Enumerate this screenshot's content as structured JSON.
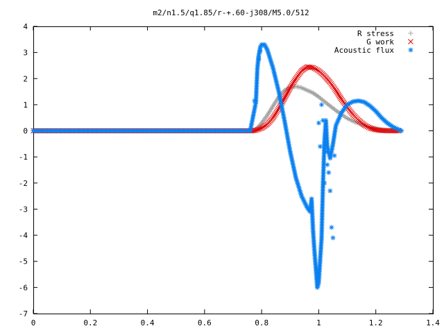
{
  "chart_data": {
    "type": "scatter",
    "title": "m2/n1.5/q1.85/r-+.60-j308/M5.0/512",
    "xlabel": "",
    "ylabel": "",
    "xlim": [
      0,
      1.4
    ],
    "ylim": [
      -7,
      4
    ],
    "x_ticks": [
      "0",
      "0.2",
      "0.4",
      "0.6",
      "0.8",
      "1",
      "1.2",
      "1.4"
    ],
    "y_ticks": [
      "-7",
      "-6",
      "-5",
      "-4",
      "-3",
      "-2",
      "-1",
      "0",
      "1",
      "2",
      "3",
      "4"
    ],
    "grid": false,
    "legend_position": "top-right",
    "series": [
      {
        "name": "R stress",
        "marker": "plus",
        "color": "#a0a0a0",
        "points": [
          [
            0,
            0
          ],
          [
            0.1,
            0
          ],
          [
            0.2,
            0
          ],
          [
            0.3,
            0
          ],
          [
            0.4,
            0
          ],
          [
            0.5,
            0
          ],
          [
            0.6,
            0
          ],
          [
            0.7,
            0
          ],
          [
            0.77,
            0
          ],
          [
            0.78,
            0.05
          ],
          [
            0.8,
            0.3
          ],
          [
            0.82,
            0.6
          ],
          [
            0.84,
            0.95
          ],
          [
            0.86,
            1.3
          ],
          [
            0.88,
            1.55
          ],
          [
            0.9,
            1.68
          ],
          [
            0.92,
            1.7
          ],
          [
            0.94,
            1.65
          ],
          [
            0.96,
            1.55
          ],
          [
            0.98,
            1.45
          ],
          [
            1.0,
            1.3
          ],
          [
            1.02,
            1.12
          ],
          [
            1.04,
            0.95
          ],
          [
            1.06,
            0.78
          ],
          [
            1.08,
            0.62
          ],
          [
            1.1,
            0.48
          ],
          [
            1.12,
            0.37
          ],
          [
            1.14,
            0.28
          ],
          [
            1.16,
            0.2
          ],
          [
            1.18,
            0.14
          ],
          [
            1.2,
            0.08
          ],
          [
            1.22,
            0.04
          ],
          [
            1.24,
            0.02
          ],
          [
            1.26,
            0.01
          ],
          [
            1.28,
            0
          ]
        ]
      },
      {
        "name": "G work",
        "marker": "cross",
        "color": "#e00000",
        "points": [
          [
            0,
            0
          ],
          [
            0.1,
            0
          ],
          [
            0.2,
            0
          ],
          [
            0.3,
            0
          ],
          [
            0.4,
            0
          ],
          [
            0.5,
            0
          ],
          [
            0.6,
            0
          ],
          [
            0.7,
            0
          ],
          [
            0.77,
            0
          ],
          [
            0.78,
            0.02
          ],
          [
            0.8,
            0.1
          ],
          [
            0.82,
            0.25
          ],
          [
            0.84,
            0.5
          ],
          [
            0.86,
            0.85
          ],
          [
            0.88,
            1.25
          ],
          [
            0.9,
            1.65
          ],
          [
            0.92,
            2.0
          ],
          [
            0.94,
            2.3
          ],
          [
            0.96,
            2.45
          ],
          [
            0.98,
            2.42
          ],
          [
            1.0,
            2.3
          ],
          [
            1.02,
            2.1
          ],
          [
            1.04,
            1.85
          ],
          [
            1.06,
            1.55
          ],
          [
            1.08,
            1.2
          ],
          [
            1.1,
            0.9
          ],
          [
            1.12,
            0.62
          ],
          [
            1.14,
            0.4
          ],
          [
            1.16,
            0.22
          ],
          [
            1.18,
            0.1
          ],
          [
            1.2,
            0.04
          ],
          [
            1.22,
            0.01
          ],
          [
            1.24,
            0
          ],
          [
            1.26,
            0
          ],
          [
            1.28,
            0
          ]
        ]
      },
      {
        "name": "Acoustic flux",
        "marker": "star",
        "color": "#0a80f0",
        "points": [
          [
            0,
            0
          ],
          [
            0.1,
            0
          ],
          [
            0.2,
            0
          ],
          [
            0.3,
            0
          ],
          [
            0.4,
            0
          ],
          [
            0.5,
            0
          ],
          [
            0.6,
            0
          ],
          [
            0.7,
            0
          ],
          [
            0.76,
            0
          ],
          [
            0.78,
            1.1
          ],
          [
            0.785,
            2.4
          ],
          [
            0.79,
            2.9
          ],
          [
            0.795,
            3.2
          ],
          [
            0.8,
            3.3
          ],
          [
            0.81,
            3.3
          ],
          [
            0.82,
            3.1
          ],
          [
            0.84,
            2.4
          ],
          [
            0.86,
            1.5
          ],
          [
            0.88,
            0.4
          ],
          [
            0.9,
            -0.8
          ],
          [
            0.92,
            -1.8
          ],
          [
            0.94,
            -2.5
          ],
          [
            0.96,
            -2.95
          ],
          [
            0.97,
            -3.1
          ],
          [
            0.975,
            -2.6
          ],
          [
            0.98,
            -3.8
          ],
          [
            0.985,
            -4.6
          ],
          [
            0.99,
            -5.3
          ],
          [
            0.995,
            -6.0
          ],
          [
            1.0,
            -5.8
          ],
          [
            1.01,
            -4.1
          ],
          [
            1.015,
            -2.0
          ],
          [
            1.02,
            -0.4
          ],
          [
            1.025,
            0.4
          ],
          [
            1.03,
            -0.6
          ],
          [
            1.04,
            -1.05
          ],
          [
            1.05,
            -0.5
          ],
          [
            1.06,
            0.2
          ],
          [
            1.08,
            0.7
          ],
          [
            1.1,
            1.0
          ],
          [
            1.12,
            1.12
          ],
          [
            1.14,
            1.15
          ],
          [
            1.16,
            1.1
          ],
          [
            1.18,
            0.95
          ],
          [
            1.2,
            0.75
          ],
          [
            1.22,
            0.5
          ],
          [
            1.24,
            0.3
          ],
          [
            1.26,
            0.15
          ],
          [
            1.28,
            0.05
          ],
          [
            1.29,
            0
          ]
        ]
      },
      {
        "name": "",
        "marker": "star",
        "color": "#0a80f0",
        "points": [
          [
            0.775,
            1.15
          ],
          [
            0.79,
            2.75
          ],
          [
            0.795,
            3.05
          ],
          [
            1.0,
            0.3
          ],
          [
            1.005,
            -0.6
          ],
          [
            1.01,
            1.0
          ],
          [
            1.015,
            0.4
          ],
          [
            1.02,
            -2.0
          ],
          [
            1.025,
            -0.8
          ],
          [
            1.03,
            -1.3
          ],
          [
            1.035,
            -1.6
          ],
          [
            1.04,
            -2.3
          ],
          [
            1.045,
            -3.7
          ],
          [
            1.05,
            -4.1
          ],
          [
            1.055,
            -0.95
          ]
        ]
      }
    ]
  }
}
